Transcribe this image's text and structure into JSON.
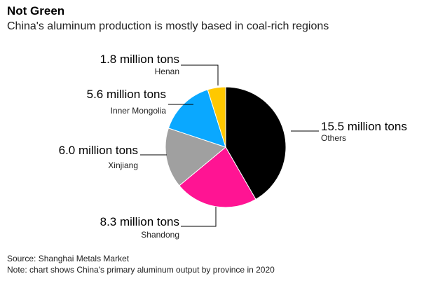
{
  "header": {
    "title": "Not Green",
    "subtitle": "China's aluminum production is mostly based in coal-rich regions"
  },
  "footer": {
    "source": "Source: Shanghai Metals Market",
    "note": "Note: chart shows China's primary aluminum output by province in 2020"
  },
  "chart_data": {
    "type": "pie",
    "title": "Not Green",
    "subtitle": "China's aluminum production is mostly based in coal-rich regions",
    "unit": "million tons",
    "slices": [
      {
        "name": "Others",
        "value": 15.5,
        "label": "15.5 million tons",
        "color": "#000000"
      },
      {
        "name": "Shandong",
        "value": 8.3,
        "label": "8.3 million tons",
        "color": "#ff1493"
      },
      {
        "name": "Xinjiang",
        "value": 6.0,
        "label": "6.0 million tons",
        "color": "#a0a0a0"
      },
      {
        "name": "Inner Mongolia",
        "value": 5.6,
        "label": "5.6 million tons",
        "color": "#0aa8ff"
      },
      {
        "name": "Henan",
        "value": 1.8,
        "label": "1.8 million tons",
        "color": "#ffc800"
      }
    ],
    "legend": "none",
    "annotations": "leader-lines"
  }
}
